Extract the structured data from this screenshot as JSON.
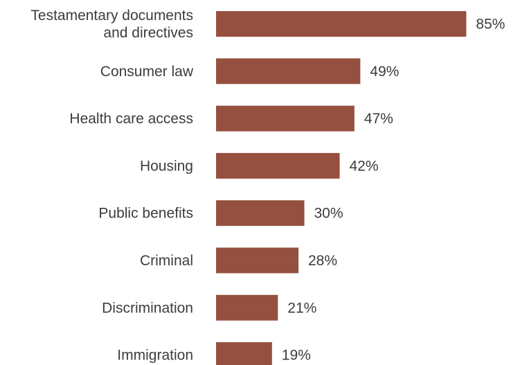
{
  "chart_data": {
    "type": "bar",
    "orientation": "horizontal",
    "categories": [
      [
        "Testamentary documents",
        "and directives"
      ],
      [
        "Consumer law"
      ],
      [
        "Health care access"
      ],
      [
        "Housing"
      ],
      [
        "Public benefits"
      ],
      [
        "Criminal"
      ],
      [
        "Discrimination"
      ],
      [
        "Immigration"
      ]
    ],
    "values": [
      85,
      49,
      47,
      42,
      30,
      28,
      21,
      19
    ],
    "value_labels": [
      "85%",
      "49%",
      "47%",
      "42%",
      "30%",
      "28%",
      "21%",
      "19%"
    ],
    "value_unit": "%",
    "xlim": [
      0,
      100
    ],
    "bar_color": "#96503f",
    "text_color": "#3c3c3c",
    "grid": false,
    "legend": "none"
  }
}
